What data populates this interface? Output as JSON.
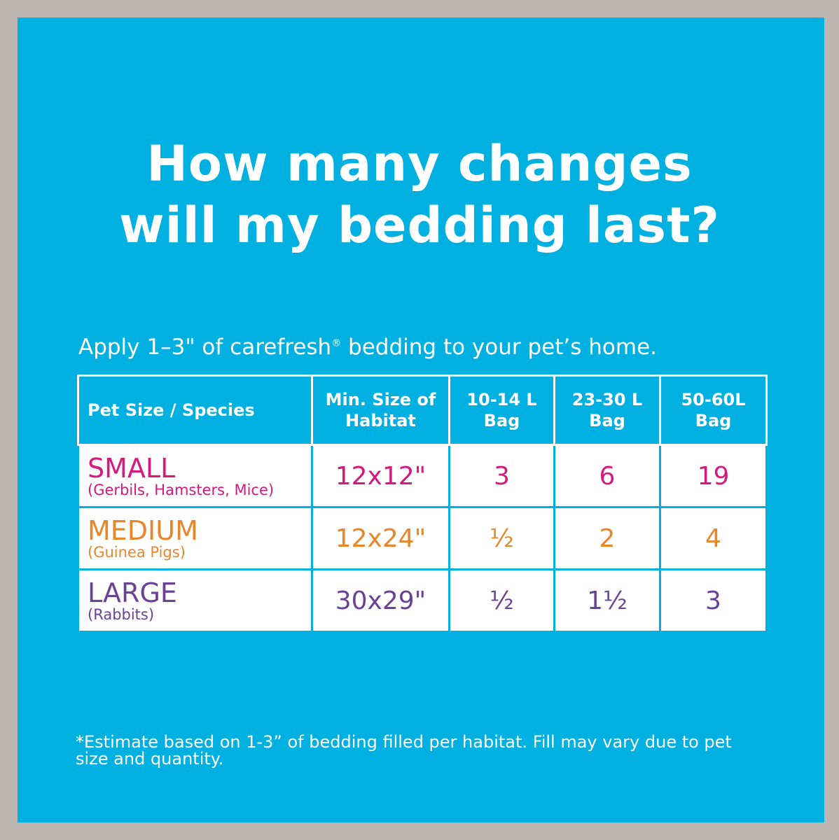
{
  "title_line1": "How many changes",
  "title_line2": "will my bedding last?",
  "subtitle": {
    "before": "Apply 1–3\" of carefresh",
    "reg": "®",
    "after": " bedding to your pet’s home."
  },
  "table": {
    "headers": [
      "Pet Size / Species",
      "Min. Size of Habitat",
      "10-14 L Bag",
      "23-30 L Bag",
      "50-60L Bag"
    ],
    "rows": [
      {
        "size": "SMALL",
        "species": "(Gerbils, Hamsters, Mice)",
        "habitat": "12x12\"",
        "bag_10_14": "3",
        "bag_23_30": "6",
        "bag_50_60": "19",
        "color": "#d6197f"
      },
      {
        "size": "MEDIUM",
        "species": "(Guinea Pigs)",
        "habitat": "12x24\"",
        "bag_10_14": "½",
        "bag_23_30": "2",
        "bag_50_60": "4",
        "color": "#e8862a"
      },
      {
        "size": "LARGE",
        "species": "(Rabbits)",
        "habitat": "30x29\"",
        "bag_10_14": "½",
        "bag_23_30": "1½",
        "bag_50_60": "3",
        "color": "#6b4196"
      }
    ]
  },
  "footnote": "*Estimate based on 1-3” of bedding filled per habitat. Fill may vary due to pet size and quantity."
}
